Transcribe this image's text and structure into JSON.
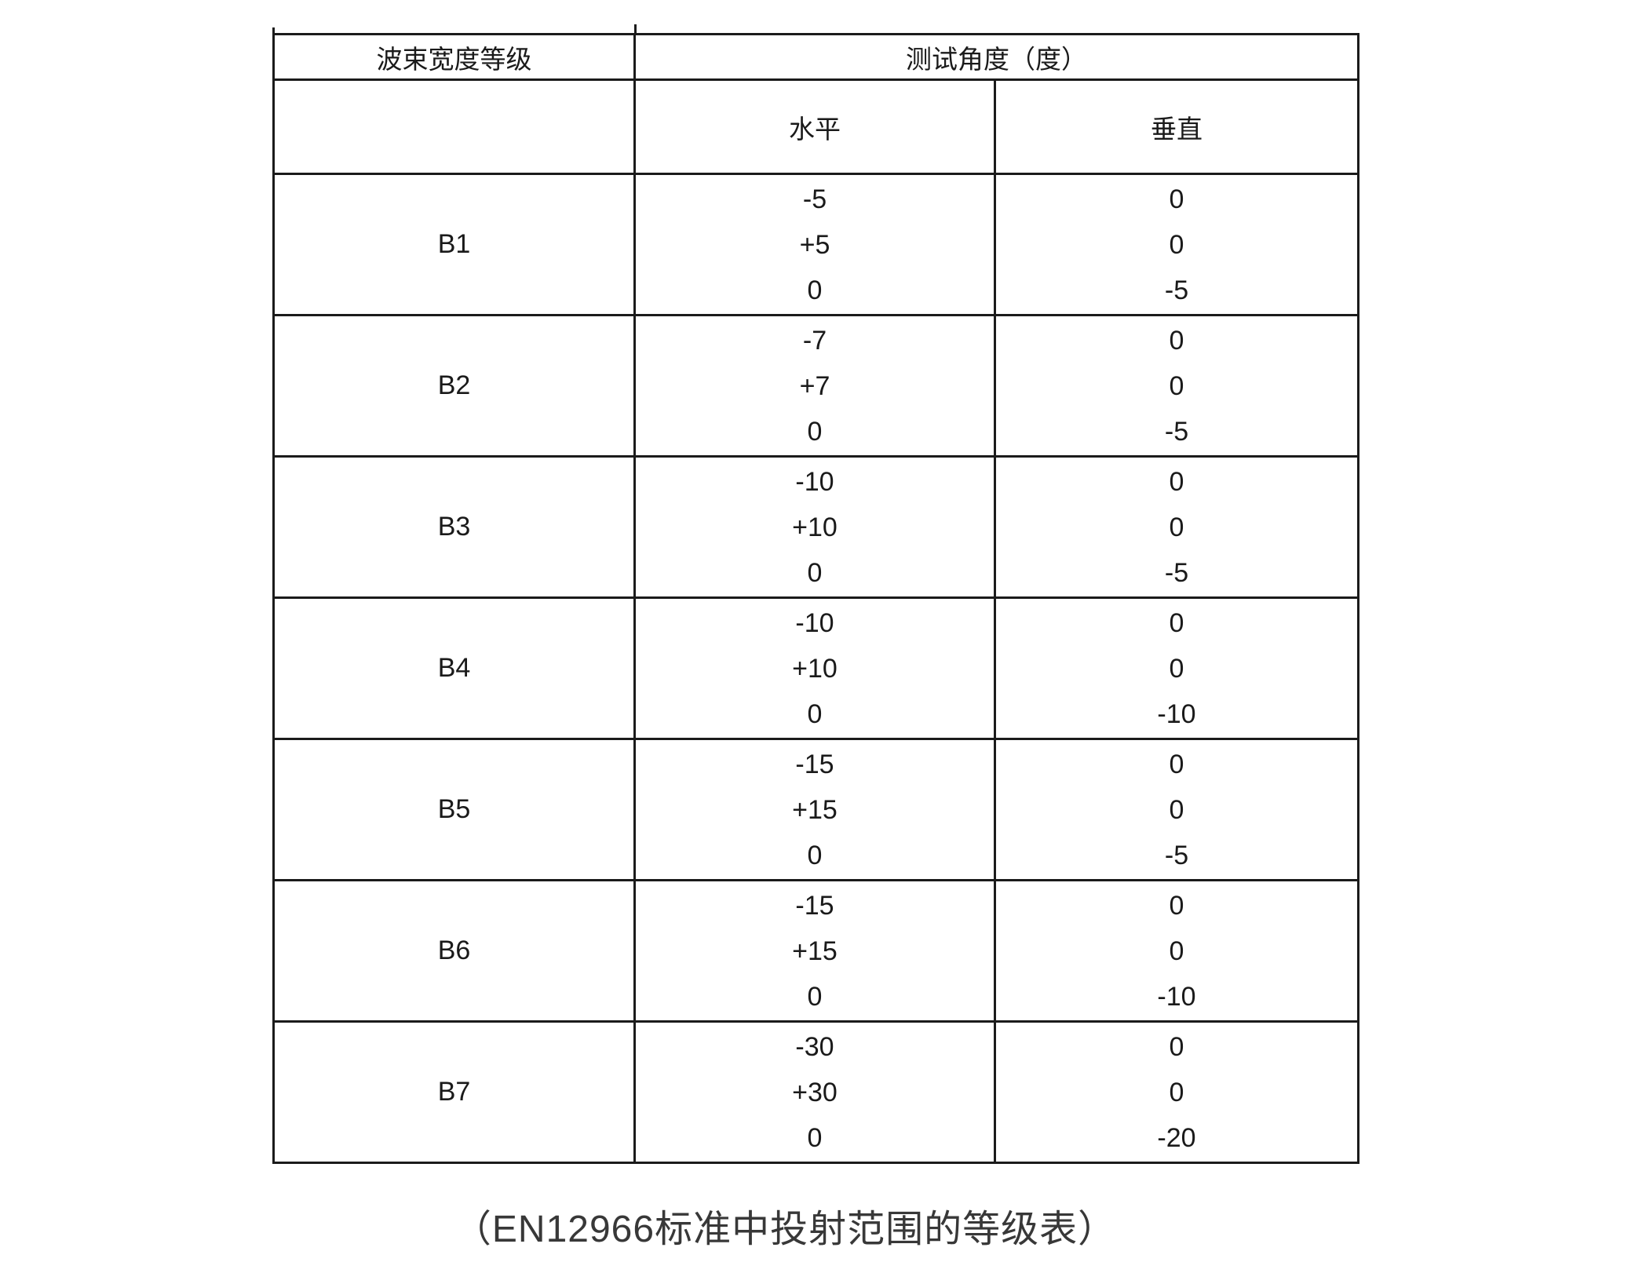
{
  "table": {
    "header": {
      "grade_col": "波束宽度等级",
      "angle_col": "测试角度（度）",
      "sub_horizontal": "水平",
      "sub_vertical": "垂直"
    },
    "rows": [
      {
        "grade": "B1",
        "horizontal": [
          "-5",
          "+5",
          "0"
        ],
        "vertical": [
          "0",
          "0",
          "-5"
        ]
      },
      {
        "grade": "B2",
        "horizontal": [
          "-7",
          "+7",
          "0"
        ],
        "vertical": [
          "0",
          "0",
          "-5"
        ]
      },
      {
        "grade": "B3",
        "horizontal": [
          "-10",
          "+10",
          "0"
        ],
        "vertical": [
          "0",
          "0",
          "-5"
        ]
      },
      {
        "grade": "B4",
        "horizontal": [
          "-10",
          "+10",
          "0"
        ],
        "vertical": [
          "0",
          "0",
          "-10"
        ]
      },
      {
        "grade": "B5",
        "horizontal": [
          "-15",
          "+15",
          "0"
        ],
        "vertical": [
          "0",
          "0",
          "-5"
        ]
      },
      {
        "grade": "B6",
        "horizontal": [
          "-15",
          "+15",
          "0"
        ],
        "vertical": [
          "0",
          "0",
          "-10"
        ]
      },
      {
        "grade": "B7",
        "horizontal": [
          "-30",
          "+30",
          "0"
        ],
        "vertical": [
          "0",
          "0",
          "-20"
        ]
      }
    ]
  },
  "caption": "（EN12966标准中投射范围的等级表）",
  "colors": {
    "border": "#1b1b1b",
    "text": "#1a1a1a",
    "caption_text": "#383838",
    "background": "#ffffff"
  }
}
